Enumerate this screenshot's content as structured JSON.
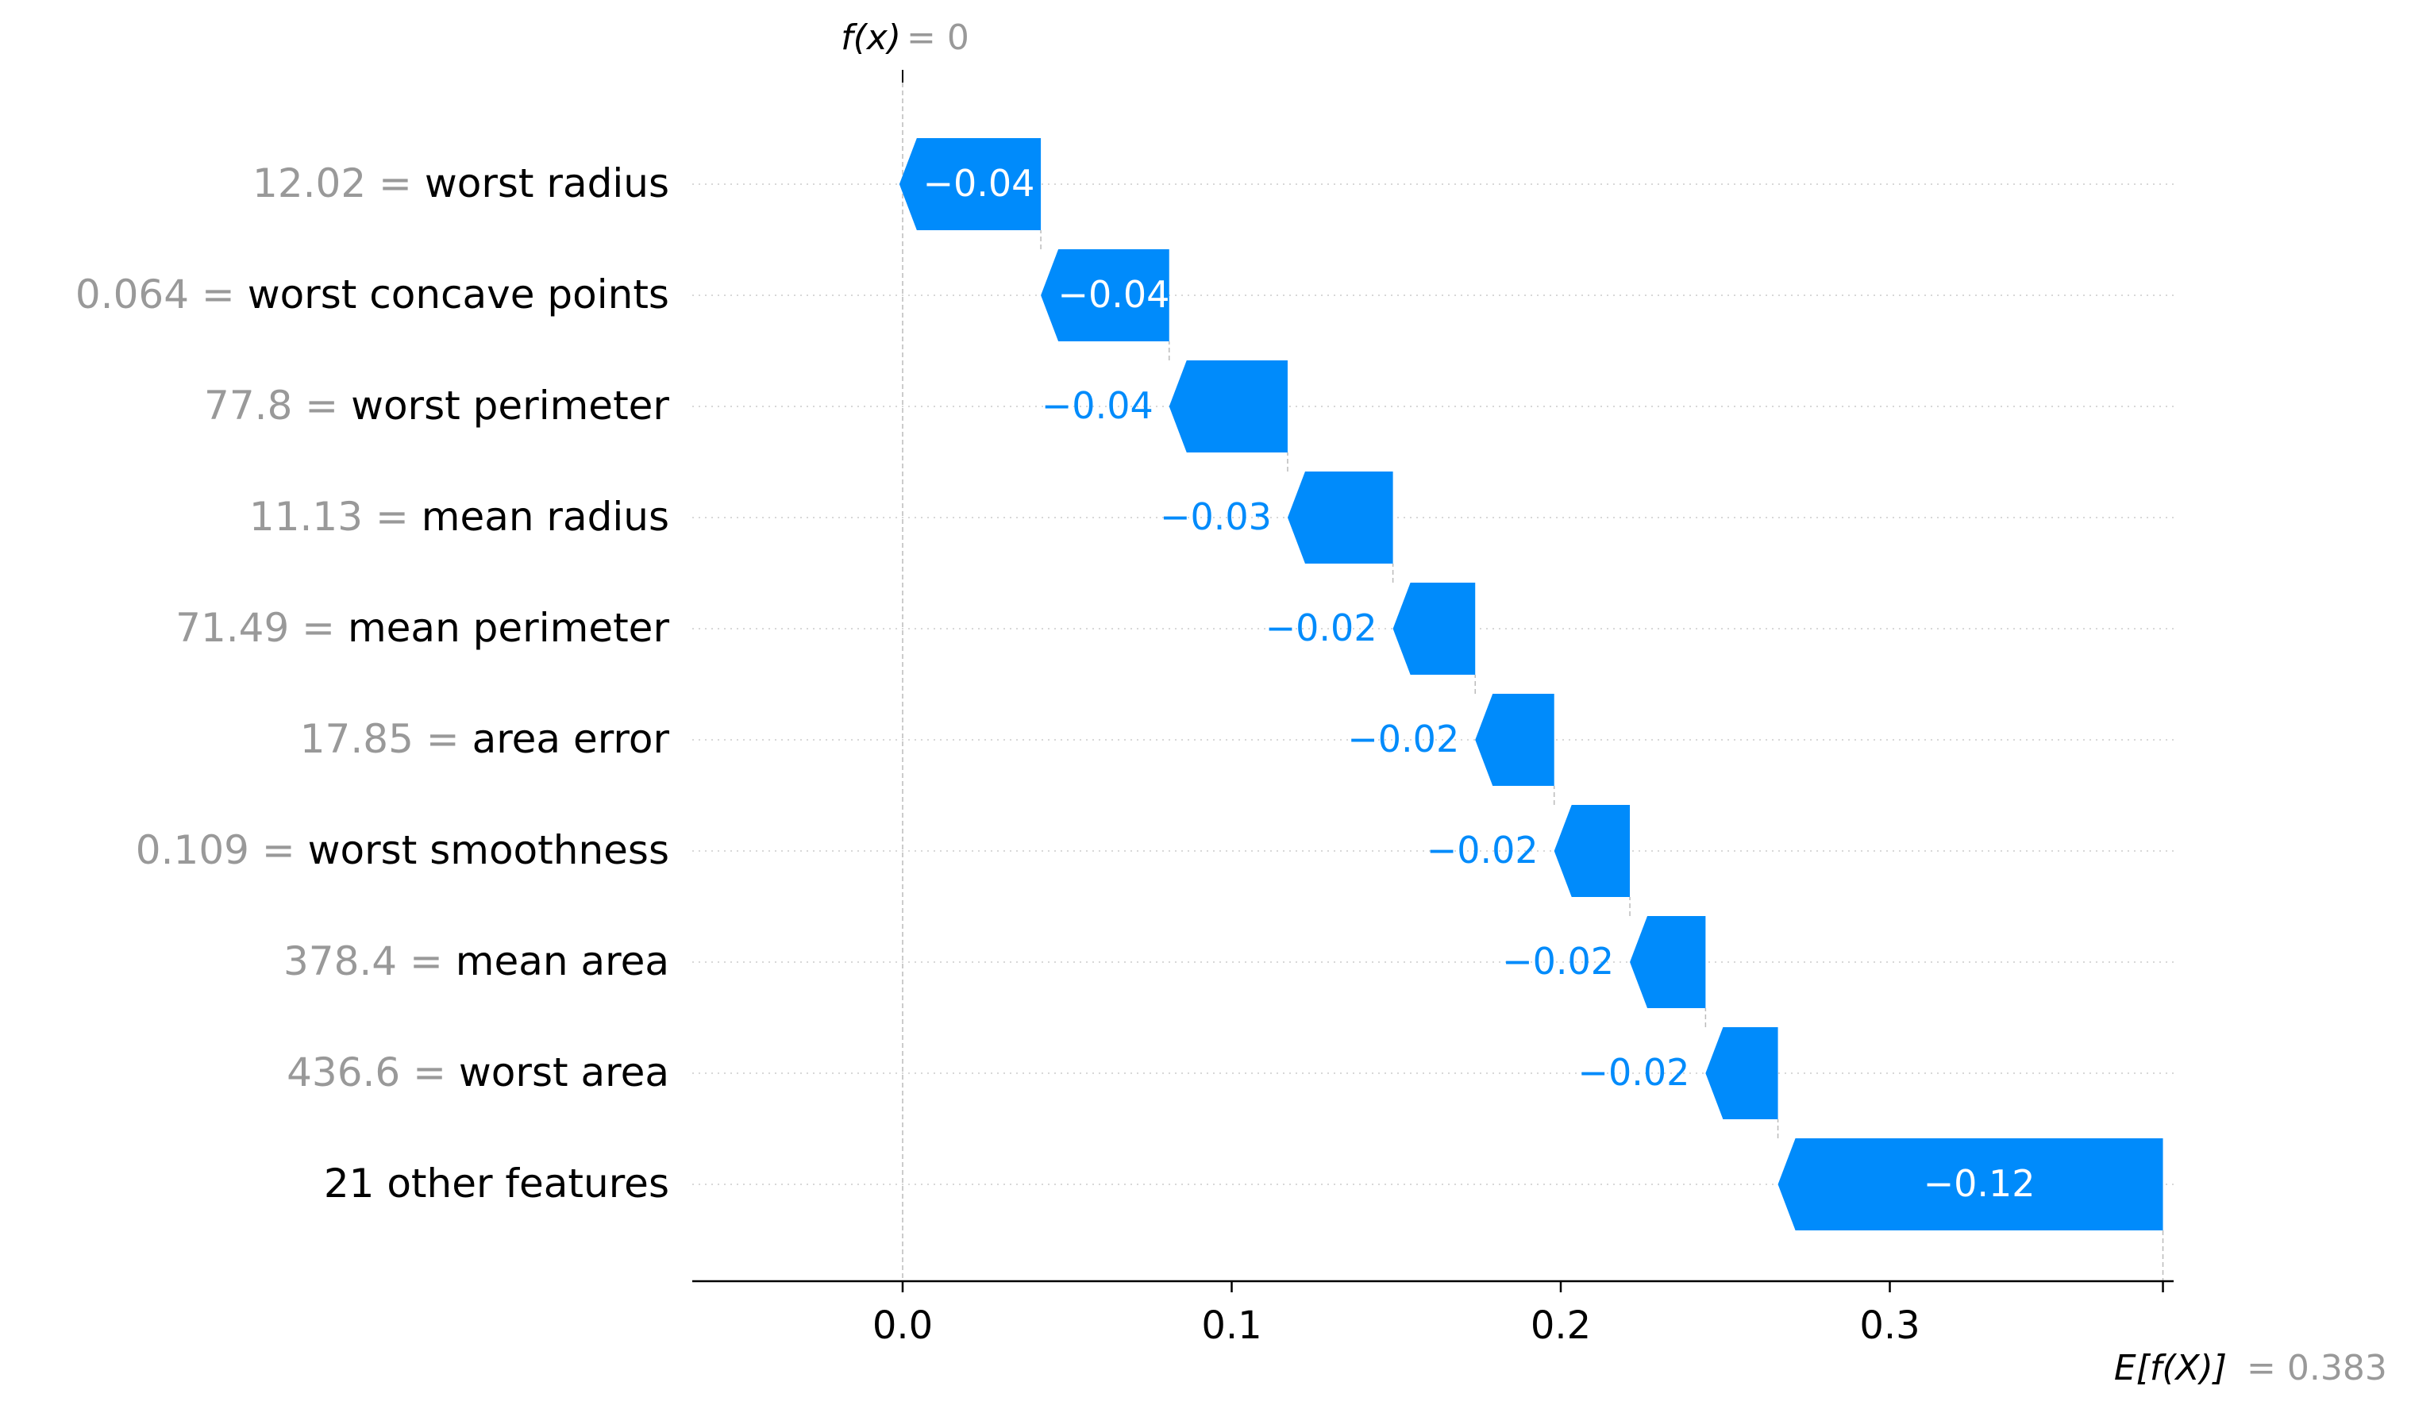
{
  "chart_data": {
    "type": "waterfall",
    "top_label": {
      "fx": "f(x)",
      "value_text": "= 0"
    },
    "bottom_label": {
      "efx": "E[f(X)]",
      "value_text": "= 0.383"
    },
    "base_value": 0.383,
    "final_value": 0,
    "rows": [
      {
        "value": "12.02",
        "name": "worst radius",
        "contribution": -0.043,
        "label": "−0.04"
      },
      {
        "value": "0.064",
        "name": "worst concave points",
        "contribution": -0.039,
        "label": "−0.04"
      },
      {
        "value": "77.8",
        "name": "worst perimeter",
        "contribution": -0.036,
        "label": "−0.04"
      },
      {
        "value": "11.13",
        "name": "mean radius",
        "contribution": -0.032,
        "label": "−0.03"
      },
      {
        "value": "71.49",
        "name": "mean perimeter",
        "contribution": -0.025,
        "label": "−0.02"
      },
      {
        "value": "17.85",
        "name": "area error",
        "contribution": -0.024,
        "label": "−0.02"
      },
      {
        "value": "0.109",
        "name": "worst smoothness",
        "contribution": -0.023,
        "label": "−0.02"
      },
      {
        "value": "378.4",
        "name": "mean area",
        "contribution": -0.023,
        "label": "−0.02"
      },
      {
        "value": "436.6",
        "name": "worst area",
        "contribution": -0.022,
        "label": "−0.02"
      },
      {
        "value": "",
        "name": "21 other features",
        "contribution": -0.117,
        "label": "−0.12"
      }
    ],
    "x_ticks": [
      {
        "value": 0.0,
        "label": "0.0"
      },
      {
        "value": 0.1,
        "label": "0.1"
      },
      {
        "value": 0.2,
        "label": "0.2"
      },
      {
        "value": 0.3,
        "label": "0.3"
      }
    ],
    "xlim": [
      -0.064,
      0.387
    ],
    "colors": {
      "negative": "#008bfb",
      "value_text": "#999999",
      "grid": "#cccccc"
    }
  }
}
